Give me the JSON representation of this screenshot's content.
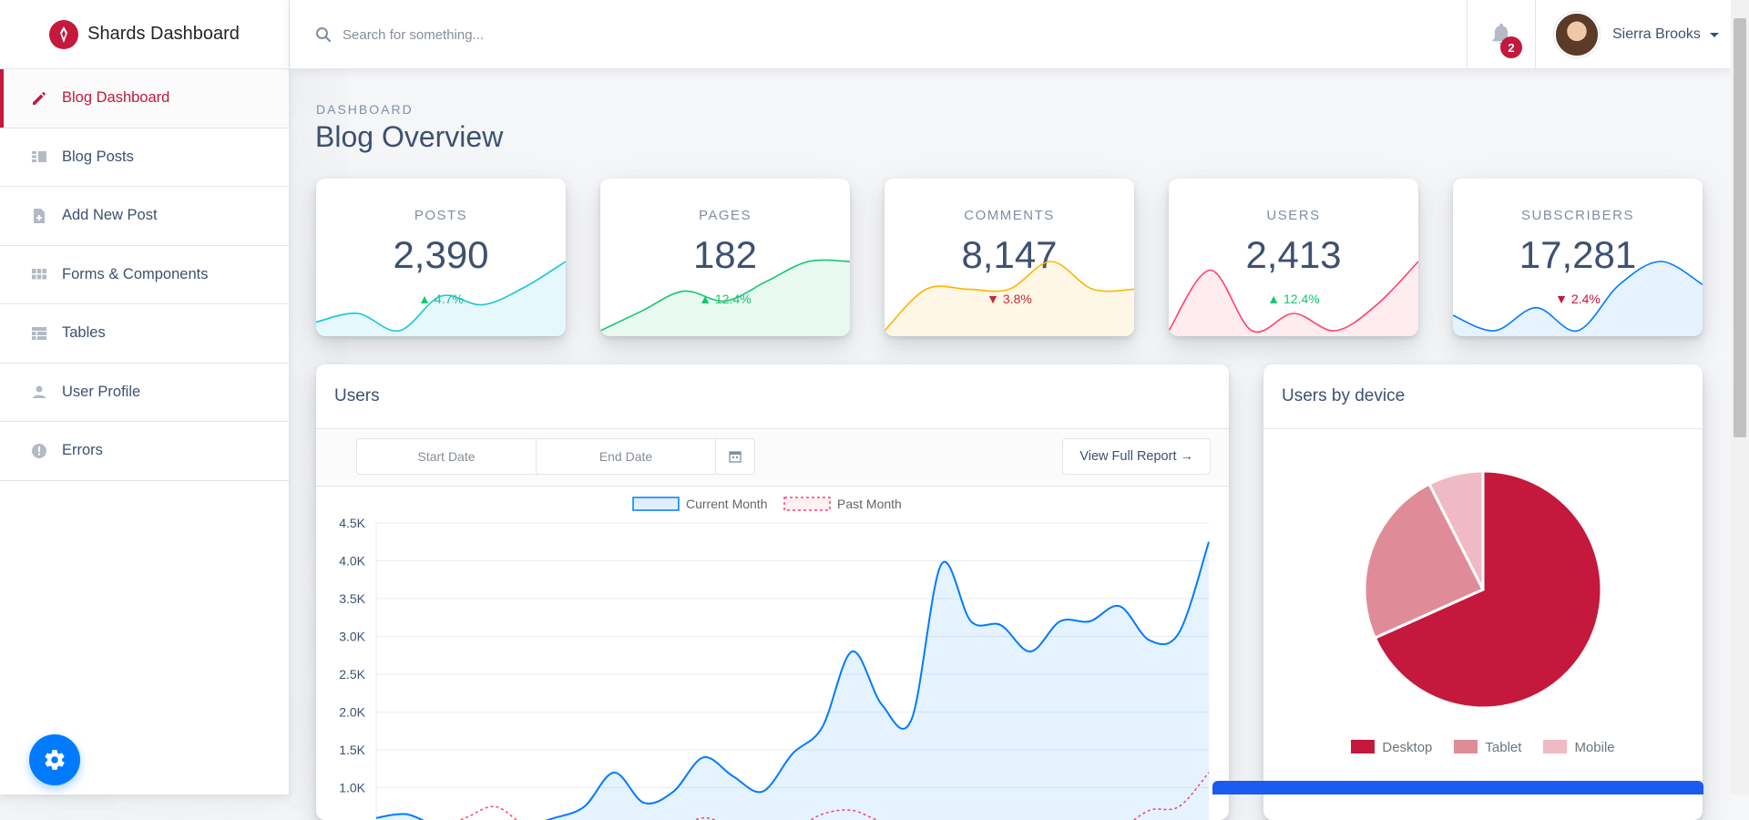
{
  "brand": {
    "name": "Shards Dashboard"
  },
  "sidebar": {
    "items": [
      {
        "label": "Blog Dashboard",
        "icon": "pencil-icon",
        "active": true
      },
      {
        "label": "Blog Posts",
        "icon": "posts-list-icon",
        "active": false
      },
      {
        "label": "Add New Post",
        "icon": "note-add-icon",
        "active": false
      },
      {
        "label": "Forms & Components",
        "icon": "grid-icon",
        "active": false
      },
      {
        "label": "Tables",
        "icon": "table-icon",
        "active": false
      },
      {
        "label": "User Profile",
        "icon": "person-icon",
        "active": false
      },
      {
        "label": "Errors",
        "icon": "error-icon",
        "active": false
      }
    ]
  },
  "header": {
    "search_placeholder": "Search for something...",
    "notifications_count": "2",
    "user_name": "Sierra Brooks"
  },
  "page": {
    "subtitle": "DASHBOARD",
    "title": "Blog Overview"
  },
  "stats": [
    {
      "label": "POSTS",
      "value": "2,390",
      "change": "4.7%",
      "direction": "up",
      "color": "#17c6d9",
      "fill": "rgba(0,184,216,0.1)",
      "trend": [
        2,
        3,
        1,
        5,
        4,
        6,
        9
      ]
    },
    {
      "label": "PAGES",
      "value": "182",
      "change": "12.4%",
      "direction": "up",
      "color": "#17c671",
      "fill": "rgba(23,198,113,0.1)",
      "trend": [
        1,
        3,
        5,
        4,
        6,
        8,
        8
      ]
    },
    {
      "label": "COMMENTS",
      "value": "8,147",
      "change": "3.8%",
      "direction": "down",
      "color": "#ffb400",
      "fill": "rgba(255,180,0,0.1)",
      "trend": [
        0,
        3,
        3,
        3,
        5,
        3,
        3
      ]
    },
    {
      "label": "USERS",
      "value": "2,413",
      "change": "12.4%",
      "direction": "up",
      "color": "#ff4169",
      "fill": "rgba(255,65,105,0.1)",
      "trend": [
        2,
        9,
        2,
        4,
        2,
        5,
        10
      ]
    },
    {
      "label": "SUBSCRIBERS",
      "value": "17,281",
      "change": "2.4%",
      "direction": "down",
      "color": "#007bff",
      "fill": "rgba(0,123,255,0.1)",
      "trend": [
        2,
        0,
        3,
        0,
        6,
        9,
        6
      ]
    }
  ],
  "users_card": {
    "title": "Users",
    "start_date_placeholder": "Start Date",
    "end_date_placeholder": "End Date",
    "report_button": "View Full Report →"
  },
  "devices_card": {
    "title": "Users by device"
  },
  "chart_data": [
    {
      "type": "line",
      "title": "Users",
      "series": [
        {
          "name": "Current Month",
          "color": "#007bff",
          "values": [
            600,
            650,
            500,
            450,
            450,
            500,
            600,
            750,
            1200,
            800,
            950,
            1400,
            1150,
            950,
            1450,
            1800,
            2800,
            2100,
            1900,
            3950,
            3200,
            3150,
            2800,
            3200,
            3200,
            3400,
            2950,
            3050,
            4250
          ]
        },
        {
          "name": "Past Month",
          "color": "#ff4169",
          "values": [
            400,
            350,
            450,
            600,
            750,
            500,
            400,
            450,
            550,
            400,
            450,
            600,
            500,
            550,
            450,
            650,
            700,
            550,
            500,
            450,
            400,
            450,
            500,
            400,
            350,
            450,
            700,
            750,
            1200
          ]
        }
      ],
      "yticks": [
        "4.5K",
        "4.0K",
        "3.5K",
        "3.0K",
        "2.5K",
        "2.0K",
        "1.5K",
        "1.0K"
      ],
      "ylim": [
        500,
        4500
      ],
      "legend": "top"
    },
    {
      "type": "pie",
      "title": "Users by device",
      "categories": [
        "Desktop",
        "Tablet",
        "Mobile"
      ],
      "values": [
        68.3,
        24.2,
        7.5
      ],
      "colors": [
        "#c4183c",
        "#e08c98",
        "#efbac3"
      ],
      "legend": "bottom"
    }
  ]
}
